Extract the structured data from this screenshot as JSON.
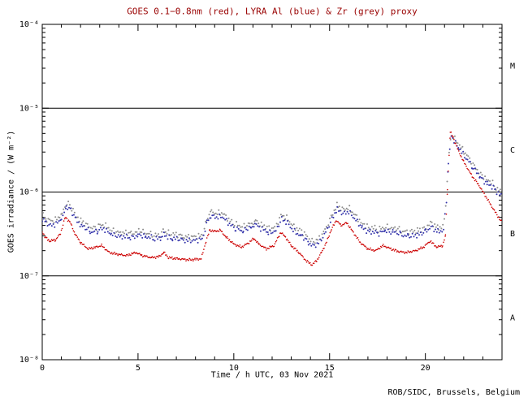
{
  "footer": "ROB/SIDC, Brussels, Belgium",
  "colors": {
    "red": "#cc0000",
    "blue": "#3333aa",
    "grey": "#8c8c8c",
    "axis": "#000000",
    "title": "#990000",
    "background": "#ffffff"
  },
  "chart_data": {
    "type": "scatter",
    "title": "GOES 0.1−0.8nm (red), LYRA Al (blue) & Zr (grey) proxy",
    "xlabel": "Time / h UTC, 03 Nov 2021",
    "ylabel": "GOES irradiance / (W m⁻²)",
    "xlim": [
      0,
      24
    ],
    "ylim_exp": [
      -8,
      -4
    ],
    "grid": false,
    "x_ticks": [
      {
        "h": 0,
        "label": "0"
      },
      {
        "h": 5,
        "label": "5"
      },
      {
        "h": 10,
        "label": "10"
      },
      {
        "h": 15,
        "label": "15"
      },
      {
        "h": 20,
        "label": "20"
      }
    ],
    "y_ticks": [
      {
        "exp": -4,
        "label": "10⁻⁴"
      },
      {
        "exp": -5,
        "label": "10⁻⁵"
      },
      {
        "exp": -6,
        "label": "10⁻⁶"
      },
      {
        "exp": -7,
        "label": "10⁻⁷"
      },
      {
        "exp": -8,
        "label": "10⁻⁸"
      }
    ],
    "hlines_exp": [
      -5,
      -6,
      -7
    ],
    "flare_class_labels": [
      {
        "label": "M",
        "exp_low": -5,
        "exp_high": -4
      },
      {
        "label": "C",
        "exp_low": -6,
        "exp_high": -5
      },
      {
        "label": "B",
        "exp_low": -7,
        "exp_high": -6
      },
      {
        "label": "A",
        "exp_low": -8,
        "exp_high": -7
      }
    ],
    "series": [
      {
        "name": "LYRA Zr proxy",
        "color_key": "grey",
        "step": 0.075,
        "noise": 1.1,
        "phase": 0.5,
        "r": 1.0,
        "points": [
          [
            0.0,
            5.4e-07
          ],
          [
            0.2,
            4.7e-07
          ],
          [
            0.5,
            4.4e-07
          ],
          [
            0.8,
            4.7e-07
          ],
          [
            1.0,
            5.4e-07
          ],
          [
            1.25,
            7.4e-07
          ],
          [
            1.5,
            6.7e-07
          ],
          [
            1.75,
            5.4e-07
          ],
          [
            2.1,
            4.4e-07
          ],
          [
            2.5,
            3.8e-07
          ],
          [
            2.9,
            3.9e-07
          ],
          [
            3.2,
            4e-07
          ],
          [
            3.6,
            3.5e-07
          ],
          [
            4.1,
            3.2e-07
          ],
          [
            4.6,
            3.2e-07
          ],
          [
            5.0,
            3.5e-07
          ],
          [
            5.4,
            3.2e-07
          ],
          [
            5.8,
            3.1e-07
          ],
          [
            6.2,
            3.2e-07
          ],
          [
            6.4,
            3.5e-07
          ],
          [
            6.8,
            3.1e-07
          ],
          [
            7.3,
            3e-07
          ],
          [
            7.9,
            3e-07
          ],
          [
            8.35,
            3.1e-07
          ],
          [
            8.6,
            4.8e-07
          ],
          [
            8.8,
            5.9e-07
          ],
          [
            9.1,
            5.7e-07
          ],
          [
            9.4,
            5.8e-07
          ],
          [
            9.7,
            4.9e-07
          ],
          [
            10.1,
            4.1e-07
          ],
          [
            10.5,
            3.8e-07
          ],
          [
            10.9,
            4.2e-07
          ],
          [
            11.1,
            4.6e-07
          ],
          [
            11.4,
            4e-07
          ],
          [
            11.8,
            3.7e-07
          ],
          [
            12.2,
            3.9e-07
          ],
          [
            12.5,
            5.4e-07
          ],
          [
            12.8,
            4.8e-07
          ],
          [
            13.1,
            3.9e-07
          ],
          [
            13.5,
            3.4e-07
          ],
          [
            13.9,
            2.8e-07
          ],
          [
            14.2,
            2.6e-07
          ],
          [
            14.5,
            2.9e-07
          ],
          [
            14.9,
            4.1e-07
          ],
          [
            15.2,
            5.8e-07
          ],
          [
            15.4,
            7e-07
          ],
          [
            15.7,
            6.3e-07
          ],
          [
            16.0,
            6.6e-07
          ],
          [
            16.3,
            5.5e-07
          ],
          [
            16.7,
            4.3e-07
          ],
          [
            17.1,
            3.7e-07
          ],
          [
            17.5,
            3.6e-07
          ],
          [
            17.9,
            3.9e-07
          ],
          [
            18.3,
            3.7e-07
          ],
          [
            18.7,
            3.5e-07
          ],
          [
            19.1,
            3.4e-07
          ],
          [
            19.6,
            3.5e-07
          ],
          [
            20.0,
            3.8e-07
          ],
          [
            20.3,
            4.4e-07
          ],
          [
            20.65,
            3.8e-07
          ],
          [
            20.95,
            3.9e-07
          ],
          [
            21.1,
            9e-07
          ],
          [
            21.2,
            2.5e-06
          ],
          [
            21.35,
            5e-06
          ],
          [
            21.5,
            4.5e-06
          ],
          [
            21.75,
            3.6e-06
          ],
          [
            22.05,
            2.9e-06
          ],
          [
            22.45,
            2.2e-06
          ],
          [
            22.85,
            1.7e-06
          ],
          [
            23.25,
            1.4e-06
          ],
          [
            23.65,
            1.15e-06
          ],
          [
            24.0,
            9.8e-07
          ]
        ]
      },
      {
        "name": "LYRA Al proxy",
        "color_key": "blue",
        "step": 0.075,
        "noise": 1.0,
        "phase": 0.0,
        "r": 1.0,
        "points": [
          [
            0.0,
            4.8e-07
          ],
          [
            0.2,
            4.2e-07
          ],
          [
            0.5,
            3.9e-07
          ],
          [
            0.8,
            4.2e-07
          ],
          [
            1.0,
            4.8e-07
          ],
          [
            1.25,
            6.6e-07
          ],
          [
            1.5,
            6e-07
          ],
          [
            1.75,
            4.8e-07
          ],
          [
            2.1,
            3.9e-07
          ],
          [
            2.5,
            3.4e-07
          ],
          [
            2.9,
            3.5e-07
          ],
          [
            3.2,
            3.6e-07
          ],
          [
            3.6,
            3.1e-07
          ],
          [
            4.1,
            2.9e-07
          ],
          [
            4.6,
            2.9e-07
          ],
          [
            5.0,
            3.1e-07
          ],
          [
            5.4,
            2.9e-07
          ],
          [
            5.8,
            2.8e-07
          ],
          [
            6.2,
            2.9e-07
          ],
          [
            6.4,
            3.1e-07
          ],
          [
            6.8,
            2.8e-07
          ],
          [
            7.3,
            2.7e-07
          ],
          [
            7.9,
            2.7e-07
          ],
          [
            8.35,
            2.8e-07
          ],
          [
            8.6,
            4.3e-07
          ],
          [
            8.8,
            5.3e-07
          ],
          [
            9.1,
            5.1e-07
          ],
          [
            9.4,
            5.2e-07
          ],
          [
            9.7,
            4.4e-07
          ],
          [
            10.1,
            3.7e-07
          ],
          [
            10.5,
            3.4e-07
          ],
          [
            10.9,
            3.8e-07
          ],
          [
            11.1,
            4.1e-07
          ],
          [
            11.4,
            3.6e-07
          ],
          [
            11.8,
            3.3e-07
          ],
          [
            12.2,
            3.5e-07
          ],
          [
            12.5,
            4.8e-07
          ],
          [
            12.8,
            4.3e-07
          ],
          [
            13.1,
            3.5e-07
          ],
          [
            13.5,
            3e-07
          ],
          [
            13.9,
            2.5e-07
          ],
          [
            14.2,
            2.3e-07
          ],
          [
            14.5,
            2.6e-07
          ],
          [
            14.9,
            3.7e-07
          ],
          [
            15.2,
            5.2e-07
          ],
          [
            15.4,
            6.3e-07
          ],
          [
            15.7,
            5.6e-07
          ],
          [
            16.0,
            5.9e-07
          ],
          [
            16.3,
            4.9e-07
          ],
          [
            16.7,
            3.8e-07
          ],
          [
            17.1,
            3.3e-07
          ],
          [
            17.5,
            3.2e-07
          ],
          [
            17.9,
            3.5e-07
          ],
          [
            18.3,
            3.3e-07
          ],
          [
            18.7,
            3.1e-07
          ],
          [
            19.1,
            3e-07
          ],
          [
            19.6,
            3.1e-07
          ],
          [
            20.0,
            3.4e-07
          ],
          [
            20.3,
            3.9e-07
          ],
          [
            20.65,
            3.4e-07
          ],
          [
            20.95,
            3.5e-07
          ],
          [
            21.1,
            8e-07
          ],
          [
            21.2,
            2.2e-06
          ],
          [
            21.35,
            4.7e-06
          ],
          [
            21.5,
            4.2e-06
          ],
          [
            21.75,
            3.3e-06
          ],
          [
            22.05,
            2.6e-06
          ],
          [
            22.45,
            2e-06
          ],
          [
            22.85,
            1.55e-06
          ],
          [
            23.25,
            1.25e-06
          ],
          [
            23.65,
            1.05e-06
          ],
          [
            24.0,
            8.8e-07
          ]
        ]
      },
      {
        "name": "GOES 0.1-0.8nm",
        "color_key": "red",
        "step": 0.045,
        "noise": 0.4,
        "phase": 0.0,
        "r": 0.8,
        "points": [
          [
            0.0,
            3.4e-07
          ],
          [
            0.15,
            2.9e-07
          ],
          [
            0.4,
            2.6e-07
          ],
          [
            0.7,
            2.7e-07
          ],
          [
            0.95,
            3.2e-07
          ],
          [
            1.2,
            5e-07
          ],
          [
            1.45,
            4.4e-07
          ],
          [
            1.7,
            3.2e-07
          ],
          [
            2.0,
            2.5e-07
          ],
          [
            2.4,
            2.1e-07
          ],
          [
            2.8,
            2.2e-07
          ],
          [
            3.1,
            2.3e-07
          ],
          [
            3.5,
            1.9e-07
          ],
          [
            4.0,
            1.8e-07
          ],
          [
            4.4,
            1.75e-07
          ],
          [
            4.9,
            1.9e-07
          ],
          [
            5.2,
            1.75e-07
          ],
          [
            5.7,
            1.65e-07
          ],
          [
            6.1,
            1.7e-07
          ],
          [
            6.35,
            1.9e-07
          ],
          [
            6.6,
            1.65e-07
          ],
          [
            7.1,
            1.6e-07
          ],
          [
            7.7,
            1.55e-07
          ],
          [
            8.3,
            1.6e-07
          ],
          [
            8.55,
            2.6e-07
          ],
          [
            8.75,
            3.5e-07
          ],
          [
            9.0,
            3.4e-07
          ],
          [
            9.3,
            3.5e-07
          ],
          [
            9.6,
            2.9e-07
          ],
          [
            10.0,
            2.4e-07
          ],
          [
            10.4,
            2.2e-07
          ],
          [
            10.8,
            2.5e-07
          ],
          [
            11.05,
            2.8e-07
          ],
          [
            11.3,
            2.4e-07
          ],
          [
            11.7,
            2.1e-07
          ],
          [
            12.1,
            2.3e-07
          ],
          [
            12.45,
            3.3e-07
          ],
          [
            12.7,
            2.9e-07
          ],
          [
            13.0,
            2.3e-07
          ],
          [
            13.4,
            1.9e-07
          ],
          [
            13.8,
            1.5e-07
          ],
          [
            14.1,
            1.35e-07
          ],
          [
            14.4,
            1.6e-07
          ],
          [
            14.8,
            2.4e-07
          ],
          [
            15.1,
            3.6e-07
          ],
          [
            15.35,
            4.6e-07
          ],
          [
            15.6,
            4e-07
          ],
          [
            15.9,
            4.3e-07
          ],
          [
            16.2,
            3.4e-07
          ],
          [
            16.6,
            2.5e-07
          ],
          [
            17.0,
            2.1e-07
          ],
          [
            17.4,
            2e-07
          ],
          [
            17.8,
            2.3e-07
          ],
          [
            18.2,
            2.1e-07
          ],
          [
            18.6,
            1.95e-07
          ],
          [
            19.0,
            1.9e-07
          ],
          [
            19.5,
            2e-07
          ],
          [
            19.9,
            2.2e-07
          ],
          [
            20.25,
            2.6e-07
          ],
          [
            20.6,
            2.2e-07
          ],
          [
            20.9,
            2.3e-07
          ],
          [
            21.05,
            3e-07
          ],
          [
            21.15,
            1.1e-06
          ],
          [
            21.3,
            5.2e-06
          ],
          [
            21.45,
            4.5e-06
          ],
          [
            21.7,
            3.2e-06
          ],
          [
            22.0,
            2.3e-06
          ],
          [
            22.4,
            1.6e-06
          ],
          [
            22.8,
            1.2e-06
          ],
          [
            23.2,
            8.5e-07
          ],
          [
            23.6,
            6e-07
          ],
          [
            24.0,
            4.3e-07
          ]
        ]
      }
    ]
  }
}
